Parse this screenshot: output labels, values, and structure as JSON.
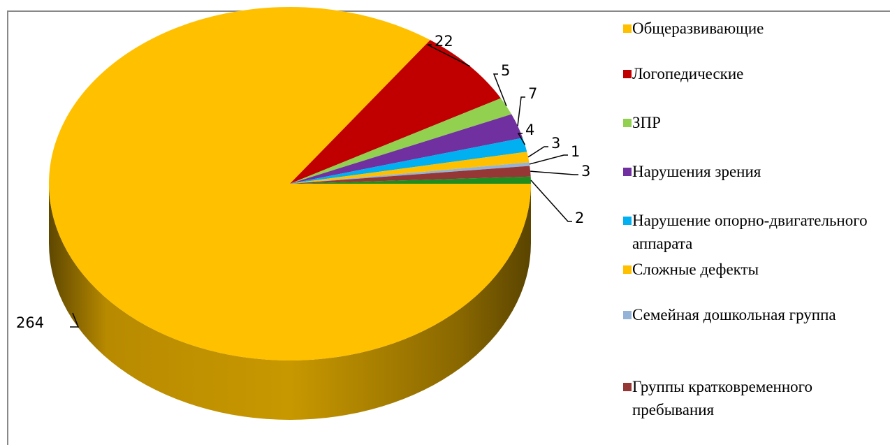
{
  "chart_data": {
    "type": "pie",
    "style": "3d",
    "categories": [
      "Общеразвивающие",
      "Логопедические",
      "ЗПР",
      "Нарушения зрения",
      "Нарушение опорно-двигательного аппарата",
      "Сложные дефекты",
      "Семейная дошкольная группа",
      "Группы кратковременного пребывания",
      null
    ],
    "values": [
      264,
      22,
      5,
      7,
      4,
      3,
      1,
      3,
      2
    ],
    "colors": [
      "#FFC000",
      "#C00000",
      "#92D050",
      "#7030A0",
      "#00B0F0",
      "#FFC000",
      "#95B3D7",
      "#953735",
      "#1E8C1E"
    ],
    "legend": "right"
  }
}
